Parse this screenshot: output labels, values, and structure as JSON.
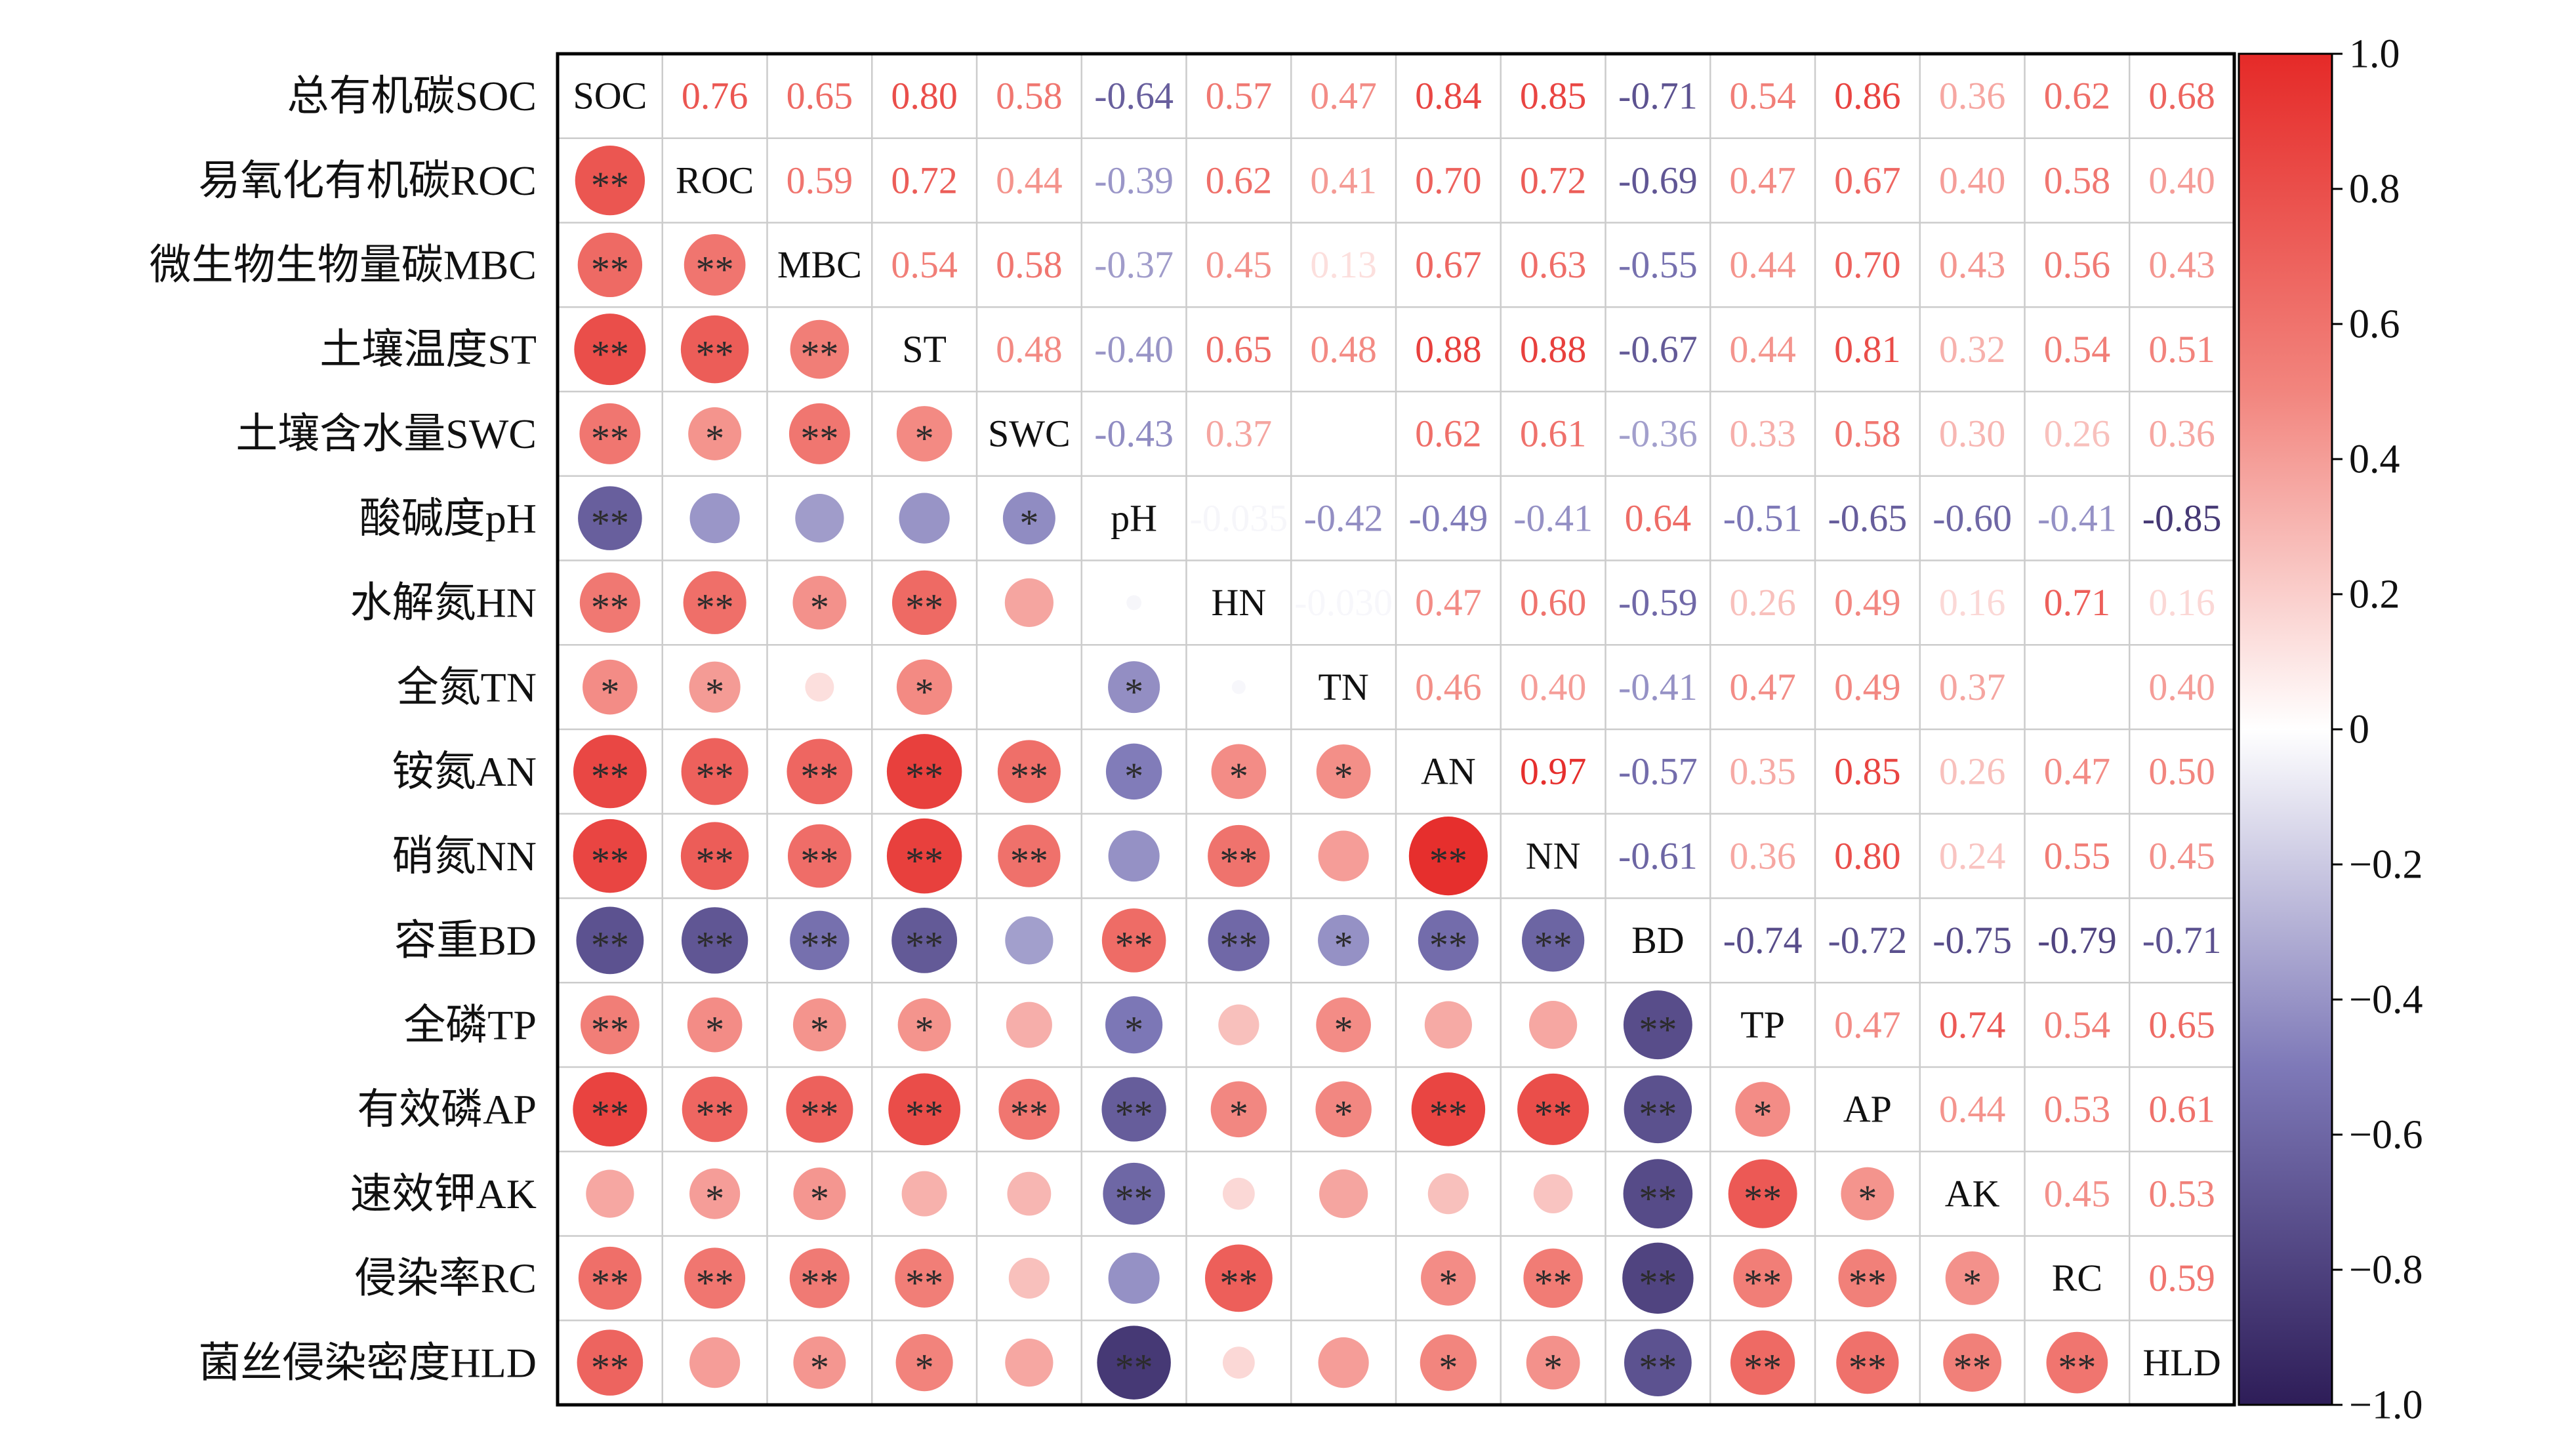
{
  "chart_data": {
    "type": "heatmap",
    "variables": [
      "SOC",
      "ROC",
      "MBC",
      "ST",
      "SWC",
      "pH",
      "HN",
      "TN",
      "AN",
      "NN",
      "BD",
      "TP",
      "AP",
      "AK",
      "RC",
      "HLD"
    ],
    "row_labels": [
      "总有机碳SOC",
      "易氧化有机碳ROC",
      "微生物生物量碳MBC",
      "土壤温度ST",
      "土壤含水量SWC",
      "酸碱度pH",
      "水解氮HN",
      "全氮TN",
      "铵氮AN",
      "硝氮NN",
      "容重BD",
      "全磷TP",
      "有效磷AP",
      "速效钾AK",
      "侵染率RC",
      "菌丝侵染密度HLD"
    ],
    "upper_values": [
      [
        0.76,
        0.65,
        0.8,
        0.58,
        -0.64,
        0.57,
        0.47,
        0.84,
        0.85,
        -0.71,
        0.54,
        0.86,
        0.36,
        0.62,
        0.68
      ],
      [
        0.59,
        0.72,
        0.44,
        -0.39,
        0.62,
        0.41,
        0.7,
        0.72,
        -0.69,
        0.47,
        0.67,
        0.4,
        0.58,
        0.4
      ],
      [
        0.54,
        0.58,
        -0.37,
        0.45,
        0.13,
        0.67,
        0.63,
        -0.55,
        0.44,
        0.7,
        0.43,
        0.56,
        0.43
      ],
      [
        0.48,
        -0.4,
        0.65,
        0.48,
        0.88,
        0.88,
        -0.67,
        0.44,
        0.81,
        0.32,
        0.54,
        0.51
      ],
      [
        -0.43,
        0.37,
        null,
        0.62,
        0.61,
        -0.36,
        0.33,
        0.58,
        0.3,
        0.26,
        0.36
      ],
      [
        -0.035,
        -0.42,
        -0.49,
        -0.41,
        0.64,
        -0.51,
        -0.65,
        -0.6,
        -0.41,
        -0.85
      ],
      [
        -0.03,
        0.47,
        0.6,
        -0.59,
        0.26,
        0.49,
        0.16,
        0.71,
        0.16
      ],
      [
        0.46,
        0.4,
        -0.41,
        0.47,
        0.49,
        0.37,
        null,
        0.4
      ],
      [
        0.97,
        -0.57,
        0.35,
        0.85,
        0.26,
        0.47,
        0.5
      ],
      [
        -0.61,
        0.36,
        0.8,
        0.24,
        0.55,
        0.45
      ],
      [
        -0.74,
        -0.72,
        -0.75,
        -0.79,
        -0.71
      ],
      [
        0.47,
        0.74,
        0.54,
        0.65
      ],
      [
        0.44,
        0.53,
        0.61
      ],
      [
        0.45,
        0.53
      ],
      [
        0.59
      ],
      []
    ],
    "lower_significance": [
      [],
      [
        "**"
      ],
      [
        "**",
        "**"
      ],
      [
        "**",
        "**",
        "**"
      ],
      [
        "**",
        "*",
        "**",
        "*"
      ],
      [
        "**",
        "",
        "",
        "",
        "*"
      ],
      [
        "**",
        "**",
        "*",
        "**",
        "",
        ""
      ],
      [
        "*",
        "*",
        "",
        "*",
        "",
        "*",
        ""
      ],
      [
        "**",
        "**",
        "**",
        "**",
        "**",
        "*",
        "*",
        "*"
      ],
      [
        "**",
        "**",
        "**",
        "**",
        "**",
        "",
        "**",
        "",
        "**"
      ],
      [
        "**",
        "**",
        "**",
        "**",
        "",
        "**",
        "**",
        "*",
        "**",
        "**"
      ],
      [
        "**",
        "*",
        "*",
        "*",
        "",
        "*",
        "",
        "*",
        "",
        "",
        "**"
      ],
      [
        "**",
        "**",
        "**",
        "**",
        "**",
        "**",
        "*",
        "*",
        "**",
        "**",
        "**",
        "*"
      ],
      [
        "",
        "*",
        "*",
        "",
        "",
        "**",
        "",
        "",
        "",
        "",
        "**",
        "**",
        "*"
      ],
      [
        "**",
        "**",
        "**",
        "**",
        "",
        "",
        "**",
        "",
        "*",
        "**",
        "**",
        "**",
        "**",
        "*"
      ],
      [
        "**",
        "",
        "*",
        "*",
        "",
        "**",
        "",
        "",
        "*",
        "*",
        "**",
        "**",
        "**",
        "**",
        "**"
      ]
    ],
    "value_range": [
      -1,
      1
    ],
    "colorbar_ticks": [
      "1.0",
      "0.8",
      "0.6",
      "0.4",
      "0.2",
      "0",
      "−0.2",
      "−0.4",
      "−0.6",
      "−0.8",
      "−1.0"
    ],
    "colorscale": [
      [
        -1,
        "#2e1d58"
      ],
      [
        -0.5,
        "#7e79b8"
      ],
      [
        0,
        "#ffffff"
      ],
      [
        0.5,
        "#f2857e"
      ],
      [
        1,
        "#e52a28"
      ]
    ],
    "colors": {
      "grid": "#cccccc",
      "border": "#000000",
      "stars": "#2b2b2b",
      "text": "#111111"
    }
  }
}
